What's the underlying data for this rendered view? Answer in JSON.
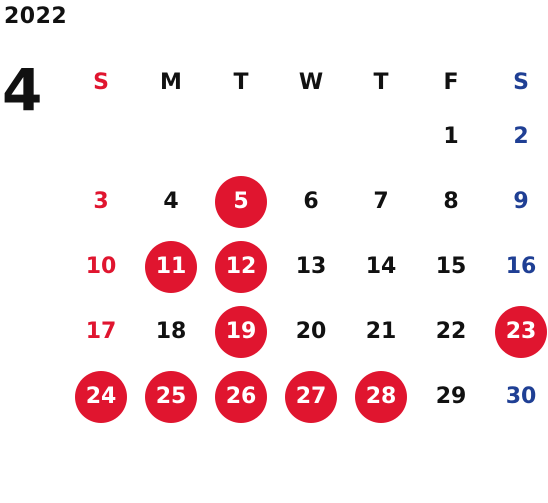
{
  "header": {
    "year": "2022",
    "month": "4"
  },
  "weekdays": [
    "S",
    "M",
    "T",
    "W",
    "T",
    "F",
    "S"
  ],
  "colors": {
    "sunday": "#e0152f",
    "saturday": "#1f3f94",
    "weekday": "#111111",
    "highlight": "#e0152f"
  },
  "weeks": [
    [
      {
        "day": "",
        "highlight": false
      },
      {
        "day": "",
        "highlight": false
      },
      {
        "day": "",
        "highlight": false
      },
      {
        "day": "",
        "highlight": false
      },
      {
        "day": "",
        "highlight": false
      },
      {
        "day": "1",
        "highlight": false
      },
      {
        "day": "2",
        "highlight": false
      }
    ],
    [
      {
        "day": "3",
        "highlight": false
      },
      {
        "day": "4",
        "highlight": false
      },
      {
        "day": "5",
        "highlight": true
      },
      {
        "day": "6",
        "highlight": false
      },
      {
        "day": "7",
        "highlight": false
      },
      {
        "day": "8",
        "highlight": false
      },
      {
        "day": "9",
        "highlight": false
      }
    ],
    [
      {
        "day": "10",
        "highlight": false
      },
      {
        "day": "11",
        "highlight": true
      },
      {
        "day": "12",
        "highlight": true
      },
      {
        "day": "13",
        "highlight": false
      },
      {
        "day": "14",
        "highlight": false
      },
      {
        "day": "15",
        "highlight": false
      },
      {
        "day": "16",
        "highlight": false
      }
    ],
    [
      {
        "day": "17",
        "highlight": false
      },
      {
        "day": "18",
        "highlight": false
      },
      {
        "day": "19",
        "highlight": true
      },
      {
        "day": "20",
        "highlight": false
      },
      {
        "day": "21",
        "highlight": false
      },
      {
        "day": "22",
        "highlight": false
      },
      {
        "day": "23",
        "highlight": true
      }
    ],
    [
      {
        "day": "24",
        "highlight": true
      },
      {
        "day": "25",
        "highlight": true
      },
      {
        "day": "26",
        "highlight": true
      },
      {
        "day": "27",
        "highlight": true
      },
      {
        "day": "28",
        "highlight": true
      },
      {
        "day": "29",
        "highlight": false
      },
      {
        "day": "30",
        "highlight": false
      }
    ]
  ]
}
